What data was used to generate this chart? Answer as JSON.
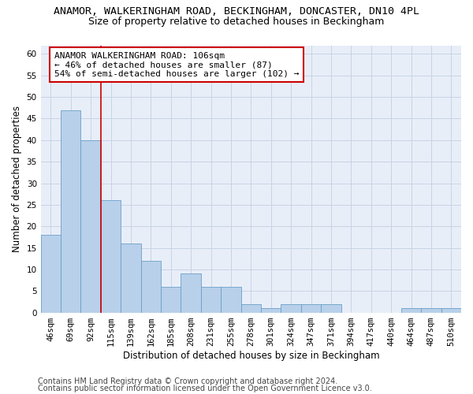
{
  "title_line1": "ANAMOR, WALKERINGHAM ROAD, BECKINGHAM, DONCASTER, DN10 4PL",
  "title_line2": "Size of property relative to detached houses in Beckingham",
  "xlabel": "Distribution of detached houses by size in Beckingham",
  "ylabel": "Number of detached properties",
  "categories": [
    "46sqm",
    "69sqm",
    "92sqm",
    "115sqm",
    "139sqm",
    "162sqm",
    "185sqm",
    "208sqm",
    "231sqm",
    "255sqm",
    "278sqm",
    "301sqm",
    "324sqm",
    "347sqm",
    "371sqm",
    "394sqm",
    "417sqm",
    "440sqm",
    "464sqm",
    "487sqm",
    "510sqm"
  ],
  "values": [
    18,
    47,
    40,
    26,
    16,
    12,
    6,
    9,
    6,
    6,
    2,
    1,
    2,
    2,
    2,
    0,
    0,
    0,
    1,
    1,
    1
  ],
  "bar_color": "#b8d0ea",
  "bar_edge_color": "#6b9fc8",
  "vline_color": "#cc0000",
  "annotation_text": "ANAMOR WALKERINGHAM ROAD: 106sqm\n← 46% of detached houses are smaller (87)\n54% of semi-detached houses are larger (102) →",
  "annotation_box_color": "#ffffff",
  "annotation_box_edge": "#cc0000",
  "ylim": [
    0,
    62
  ],
  "yticks": [
    0,
    5,
    10,
    15,
    20,
    25,
    30,
    35,
    40,
    45,
    50,
    55,
    60
  ],
  "grid_color": "#c8d4e4",
  "background_color": "#e8eef8",
  "footer_line1": "Contains HM Land Registry data © Crown copyright and database right 2024.",
  "footer_line2": "Contains public sector information licensed under the Open Government Licence v3.0.",
  "title_fontsize": 9.5,
  "subtitle_fontsize": 9,
  "axis_label_fontsize": 8.5,
  "tick_fontsize": 7.5,
  "annotation_fontsize": 8,
  "footer_fontsize": 7
}
